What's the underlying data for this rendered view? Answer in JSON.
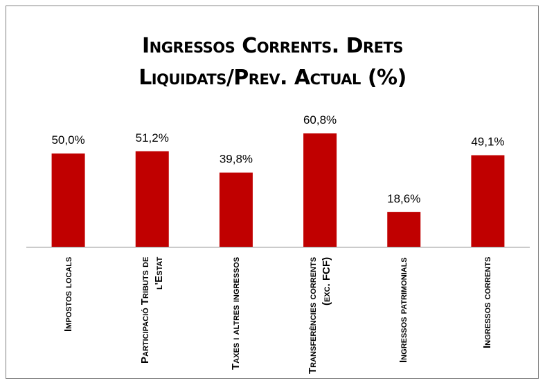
{
  "chart_data": {
    "type": "bar",
    "title": "Ingressos Corrents. Drets Liquidats/Prev. Actual (%)",
    "categories": [
      "Impostos locals",
      "Participació Tributs de l'Estat",
      "Taxes i altres ingressos",
      "Transferències corrents (exc. FCF)",
      "Ingressos patrimonials",
      "Ingressos corrents"
    ],
    "values": [
      50.0,
      51.2,
      39.8,
      60.8,
      18.6,
      49.1
    ],
    "value_labels": [
      "50,0%",
      "51,2%",
      "39,8%",
      "60,8%",
      "18,6%",
      "49,1%"
    ],
    "color": "#c00000"
  }
}
